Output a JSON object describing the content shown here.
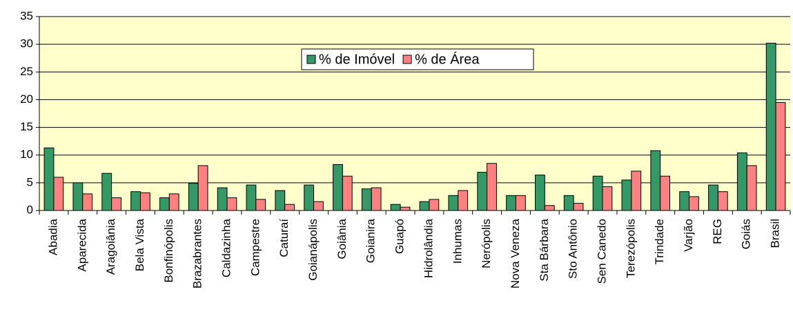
{
  "chart_data": {
    "type": "bar",
    "categories": [
      "Abadia",
      "Aparecida",
      "Aragoiânia",
      "Bela Vista",
      "Bonfinópolis",
      "Brazabrantes",
      "Caldazinha",
      "Campestre",
      "Caturaí",
      "Goianápolis",
      "Goiânia",
      "Goianira",
      "Guapó",
      "Hidrolândia",
      "Inhumas",
      "Nerópolis",
      "Nova Veneza",
      "Sta Bárbara",
      "Sto Antônio",
      "Sen Canedo",
      "Terezópolis",
      "Trindade",
      "Varjão",
      "REG",
      "Goiás",
      "Brasil"
    ],
    "series": [
      {
        "name": "% de Imóvel",
        "color": "#339966",
        "values": [
          11.3,
          5.0,
          6.7,
          3.4,
          2.3,
          4.9,
          4.1,
          4.6,
          3.6,
          4.6,
          8.3,
          3.9,
          1.1,
          1.6,
          2.7,
          6.9,
          2.7,
          6.4,
          2.7,
          6.2,
          5.5,
          10.8,
          3.4,
          4.6,
          10.4,
          30.2
        ]
      },
      {
        "name": "% de Área",
        "color": "#ff8080",
        "values": [
          6.0,
          3.0,
          2.3,
          3.2,
          3.0,
          8.1,
          2.3,
          2.0,
          1.1,
          1.6,
          6.2,
          4.1,
          0.6,
          2.0,
          3.6,
          8.5,
          2.7,
          0.9,
          1.3,
          4.3,
          7.1,
          6.2,
          2.5,
          3.4,
          8.1,
          19.5
        ]
      }
    ],
    "ylim": [
      0,
      35
    ],
    "yticks": [
      0,
      5,
      10,
      15,
      20,
      25,
      30,
      35
    ],
    "grid": true,
    "legend": "top"
  }
}
